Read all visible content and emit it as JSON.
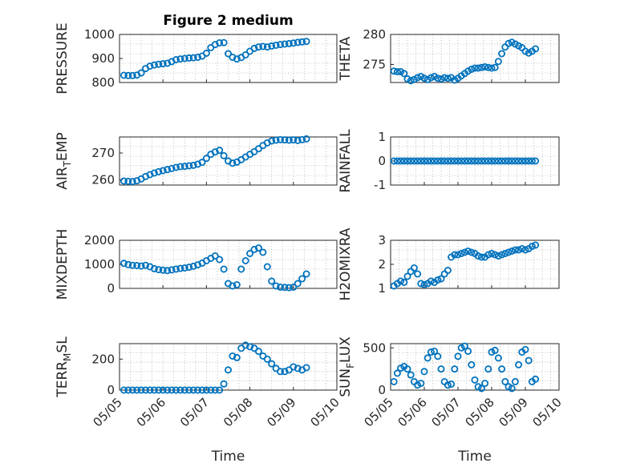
{
  "chart_data": [
    {
      "type": "scatter",
      "title": "Figure 2 medium",
      "ylabel": "PRESSURE",
      "xlabel": "",
      "ylim": [
        800,
        1000
      ],
      "yticks": [
        "800",
        "900",
        "1000"
      ],
      "xlim": [
        0,
        5
      ],
      "xticks": [
        "05/05",
        "05/06",
        "05/07",
        "05/08",
        "05/09",
        "05/10"
      ],
      "show_xtick_labels": false,
      "grid": true,
      "color": "#0072BD",
      "x": [
        0.1,
        0.2,
        0.3,
        0.4,
        0.5,
        0.6,
        0.7,
        0.8,
        0.9,
        1.0,
        1.1,
        1.2,
        1.3,
        1.4,
        1.5,
        1.6,
        1.7,
        1.8,
        1.9,
        2.0,
        2.1,
        2.2,
        2.3,
        2.4,
        2.5,
        2.6,
        2.7,
        2.8,
        2.9,
        3.0,
        3.1,
        3.2,
        3.3,
        3.4,
        3.5,
        3.6,
        3.7,
        3.8,
        3.9,
        4.0,
        4.1,
        4.2,
        4.3
      ],
      "y": [
        830,
        829,
        829,
        831,
        840,
        858,
        868,
        873,
        876,
        878,
        880,
        887,
        895,
        898,
        900,
        902,
        903,
        905,
        910,
        922,
        945,
        958,
        965,
        966,
        920,
        905,
        898,
        904,
        915,
        930,
        942,
        948,
        950,
        948,
        952,
        955,
        958,
        960,
        962,
        964,
        967,
        969,
        971
      ]
    },
    {
      "type": "scatter",
      "title": "",
      "ylabel": "THETA",
      "xlabel": "",
      "ylim": [
        272,
        280
      ],
      "yticks": [
        "275",
        "280"
      ],
      "xlim": [
        0,
        5
      ],
      "xticks": [
        "05/05",
        "05/06",
        "05/07",
        "05/08",
        "05/09",
        "05/10"
      ],
      "show_xtick_labels": false,
      "grid": true,
      "color": "#0072BD",
      "x": [
        0.1,
        0.2,
        0.3,
        0.4,
        0.5,
        0.6,
        0.7,
        0.8,
        0.9,
        1.0,
        1.1,
        1.2,
        1.3,
        1.4,
        1.5,
        1.6,
        1.7,
        1.8,
        1.9,
        2.0,
        2.1,
        2.2,
        2.3,
        2.4,
        2.5,
        2.6,
        2.7,
        2.8,
        2.9,
        3.0,
        3.1,
        3.2,
        3.3,
        3.4,
        3.5,
        3.6,
        3.7,
        3.8,
        3.9,
        4.0,
        4.1,
        4.2,
        4.3
      ],
      "y": [
        273.9,
        273.8,
        273.8,
        273.5,
        272.6,
        272.3,
        272.5,
        272.8,
        273.0,
        272.7,
        272.5,
        272.8,
        273.0,
        272.7,
        272.6,
        272.8,
        272.7,
        272.8,
        272.4,
        272.7,
        273.1,
        273.5,
        273.9,
        274.2,
        274.4,
        274.4,
        274.5,
        274.6,
        274.5,
        274.4,
        274.5,
        275.5,
        276.8,
        277.9,
        278.5,
        278.7,
        278.4,
        278.1,
        277.8,
        277.2,
        276.9,
        277.2,
        277.6
      ]
    },
    {
      "type": "scatter",
      "title": "",
      "ylabel": "AIR_TEMP",
      "ylabel_main": "AIR",
      "ylabel_sub": "T",
      "ylabel_rest": "EMP",
      "xlabel": "",
      "ylim": [
        258,
        276
      ],
      "yticks": [
        "260",
        "270"
      ],
      "xlim": [
        0,
        5
      ],
      "xticks": [
        "05/05",
        "05/06",
        "05/07",
        "05/08",
        "05/09",
        "05/10"
      ],
      "show_xtick_labels": false,
      "grid": true,
      "color": "#0072BD",
      "x": [
        0.1,
        0.2,
        0.3,
        0.4,
        0.5,
        0.6,
        0.7,
        0.8,
        0.9,
        1.0,
        1.1,
        1.2,
        1.3,
        1.4,
        1.5,
        1.6,
        1.7,
        1.8,
        1.9,
        2.0,
        2.1,
        2.2,
        2.3,
        2.4,
        2.5,
        2.6,
        2.7,
        2.8,
        2.9,
        3.0,
        3.1,
        3.2,
        3.3,
        3.4,
        3.5,
        3.6,
        3.7,
        3.8,
        3.9,
        4.0,
        4.1,
        4.2,
        4.3
      ],
      "y": [
        259.5,
        259.4,
        259.3,
        259.6,
        260.3,
        261.2,
        261.9,
        262.5,
        263.0,
        263.4,
        263.8,
        264.2,
        264.6,
        264.9,
        265.0,
        265.2,
        265.4,
        265.8,
        266.5,
        268.0,
        269.5,
        270.4,
        271.0,
        269.0,
        267.0,
        266.2,
        266.6,
        267.5,
        268.5,
        269.5,
        270.5,
        271.6,
        272.8,
        273.8,
        274.5,
        274.8,
        275.0,
        274.9,
        274.8,
        274.9,
        274.7,
        275.0,
        275.3
      ]
    },
    {
      "type": "scatter",
      "title": "",
      "ylabel": "RAINFALL",
      "xlabel": "",
      "ylim": [
        -1,
        1
      ],
      "yticks": [
        "-1",
        "0",
        "1"
      ],
      "xlim": [
        0,
        5
      ],
      "xticks": [
        "05/05",
        "05/06",
        "05/07",
        "05/08",
        "05/09",
        "05/10"
      ],
      "show_xtick_labels": false,
      "grid": true,
      "color": "#0072BD",
      "x": [
        0.1,
        0.2,
        0.3,
        0.4,
        0.5,
        0.6,
        0.7,
        0.8,
        0.9,
        1.0,
        1.1,
        1.2,
        1.3,
        1.4,
        1.5,
        1.6,
        1.7,
        1.8,
        1.9,
        2.0,
        2.1,
        2.2,
        2.3,
        2.4,
        2.5,
        2.6,
        2.7,
        2.8,
        2.9,
        3.0,
        3.1,
        3.2,
        3.3,
        3.4,
        3.5,
        3.6,
        3.7,
        3.8,
        3.9,
        4.0,
        4.1,
        4.2,
        4.3
      ],
      "y": [
        0,
        0,
        0,
        0,
        0,
        0,
        0,
        0,
        0,
        0,
        0,
        0,
        0,
        0,
        0,
        0,
        0,
        0,
        0,
        0,
        0,
        0,
        0,
        0,
        0,
        0,
        0,
        0,
        0,
        0,
        0,
        0,
        0,
        0,
        0,
        0,
        0,
        0,
        0,
        0,
        0,
        0,
        0
      ]
    },
    {
      "type": "scatter",
      "title": "",
      "ylabel": "MIXDEPTH",
      "xlabel": "",
      "ylim": [
        0,
        2000
      ],
      "yticks": [
        "0",
        "1000",
        "2000"
      ],
      "xlim": [
        0,
        5
      ],
      "xticks": [
        "05/05",
        "05/06",
        "05/07",
        "05/08",
        "05/09",
        "05/10"
      ],
      "show_xtick_labels": false,
      "grid": true,
      "color": "#0072BD",
      "x": [
        0.1,
        0.2,
        0.3,
        0.4,
        0.5,
        0.6,
        0.7,
        0.8,
        0.9,
        1.0,
        1.1,
        1.2,
        1.3,
        1.4,
        1.5,
        1.6,
        1.7,
        1.8,
        1.9,
        2.0,
        2.1,
        2.2,
        2.3,
        2.4,
        2.5,
        2.6,
        2.7,
        2.8,
        2.9,
        3.0,
        3.1,
        3.2,
        3.3,
        3.4,
        3.5,
        3.6,
        3.7,
        3.8,
        3.9,
        4.0,
        4.1,
        4.2,
        4.3
      ],
      "y": [
        1040,
        990,
        960,
        950,
        930,
        960,
        900,
        820,
        780,
        760,
        740,
        770,
        800,
        830,
        850,
        880,
        920,
        980,
        1050,
        1150,
        1250,
        1350,
        1200,
        800,
        200,
        100,
        150,
        800,
        1150,
        1450,
        1620,
        1680,
        1500,
        900,
        300,
        100,
        50,
        40,
        30,
        50,
        200,
        400,
        600
      ]
    },
    {
      "type": "scatter",
      "title": "",
      "ylabel": "H2OMIXRA",
      "xlabel": "",
      "ylim": [
        1,
        3
      ],
      "yticks": [
        "1",
        "2",
        "3"
      ],
      "xlim": [
        0,
        5
      ],
      "xticks": [
        "05/05",
        "05/06",
        "05/07",
        "05/08",
        "05/09",
        "05/10"
      ],
      "show_xtick_labels": false,
      "grid": true,
      "color": "#0072BD",
      "x": [
        0.1,
        0.2,
        0.3,
        0.4,
        0.5,
        0.6,
        0.7,
        0.8,
        0.9,
        1.0,
        1.1,
        1.2,
        1.3,
        1.4,
        1.5,
        1.6,
        1.7,
        1.8,
        1.9,
        2.0,
        2.1,
        2.2,
        2.3,
        2.4,
        2.5,
        2.6,
        2.7,
        2.8,
        2.9,
        3.0,
        3.1,
        3.2,
        3.3,
        3.4,
        3.5,
        3.6,
        3.7,
        3.8,
        3.9,
        4.0,
        4.1,
        4.2,
        4.3
      ],
      "y": [
        1.1,
        1.2,
        1.3,
        1.25,
        1.5,
        1.7,
        1.85,
        1.6,
        1.2,
        1.15,
        1.2,
        1.3,
        1.25,
        1.35,
        1.4,
        1.6,
        1.75,
        2.3,
        2.4,
        2.4,
        2.45,
        2.5,
        2.55,
        2.5,
        2.45,
        2.35,
        2.3,
        2.3,
        2.4,
        2.45,
        2.4,
        2.35,
        2.4,
        2.45,
        2.5,
        2.55,
        2.6,
        2.6,
        2.65,
        2.6,
        2.65,
        2.75,
        2.8
      ]
    },
    {
      "type": "scatter",
      "title": "",
      "ylabel": "TERR_MSL",
      "ylabel_main": "TERR",
      "ylabel_sub": "M",
      "ylabel_rest": "SL",
      "xlabel": "Time",
      "ylim": [
        0,
        300
      ],
      "yticks": [
        "0",
        "200"
      ],
      "xlim": [
        0,
        5
      ],
      "xticks": [
        "05/05",
        "05/06",
        "05/07",
        "05/08",
        "05/09",
        "05/10"
      ],
      "show_xtick_labels": true,
      "grid": true,
      "color": "#0072BD",
      "x": [
        0.1,
        0.2,
        0.3,
        0.4,
        0.5,
        0.6,
        0.7,
        0.8,
        0.9,
        1.0,
        1.1,
        1.2,
        1.3,
        1.4,
        1.5,
        1.6,
        1.7,
        1.8,
        1.9,
        2.0,
        2.1,
        2.2,
        2.3,
        2.4,
        2.5,
        2.6,
        2.7,
        2.8,
        2.9,
        3.0,
        3.1,
        3.2,
        3.3,
        3.4,
        3.5,
        3.6,
        3.7,
        3.8,
        3.9,
        4.0,
        4.1,
        4.2,
        4.3
      ],
      "y": [
        0,
        0,
        0,
        0,
        0,
        0,
        0,
        0,
        0,
        0,
        0,
        0,
        0,
        0,
        0,
        0,
        0,
        0,
        0,
        0,
        0,
        0,
        0,
        40,
        130,
        220,
        210,
        270,
        290,
        280,
        270,
        250,
        220,
        200,
        170,
        140,
        120,
        120,
        130,
        150,
        140,
        130,
        145
      ]
    },
    {
      "type": "scatter",
      "title": "",
      "ylabel": "SUN_FLUX",
      "ylabel_main": "SUN",
      "ylabel_sub": "F",
      "ylabel_rest": "LUX",
      "xlabel": "Time",
      "ylim": [
        0,
        550
      ],
      "yticks": [
        "0",
        "500"
      ],
      "xlim": [
        0,
        5
      ],
      "xticks": [
        "05/05",
        "05/06",
        "05/07",
        "05/08",
        "05/09",
        "05/10"
      ],
      "show_xtick_labels": true,
      "grid": true,
      "color": "#0072BD",
      "x": [
        0.1,
        0.2,
        0.3,
        0.4,
        0.5,
        0.6,
        0.7,
        0.8,
        0.9,
        1.0,
        1.1,
        1.2,
        1.3,
        1.4,
        1.5,
        1.6,
        1.7,
        1.8,
        1.9,
        2.0,
        2.1,
        2.2,
        2.3,
        2.4,
        2.5,
        2.6,
        2.7,
        2.8,
        2.9,
        3.0,
        3.1,
        3.2,
        3.3,
        3.4,
        3.5,
        3.6,
        3.7,
        3.8,
        3.9,
        4.0,
        4.1,
        4.2,
        4.3
      ],
      "y": [
        100,
        200,
        260,
        280,
        250,
        180,
        100,
        60,
        80,
        220,
        380,
        450,
        460,
        400,
        250,
        100,
        60,
        70,
        250,
        400,
        500,
        520,
        460,
        300,
        120,
        40,
        20,
        80,
        250,
        450,
        470,
        380,
        250,
        100,
        40,
        20,
        100,
        300,
        450,
        480,
        350,
        100,
        130
      ]
    }
  ]
}
